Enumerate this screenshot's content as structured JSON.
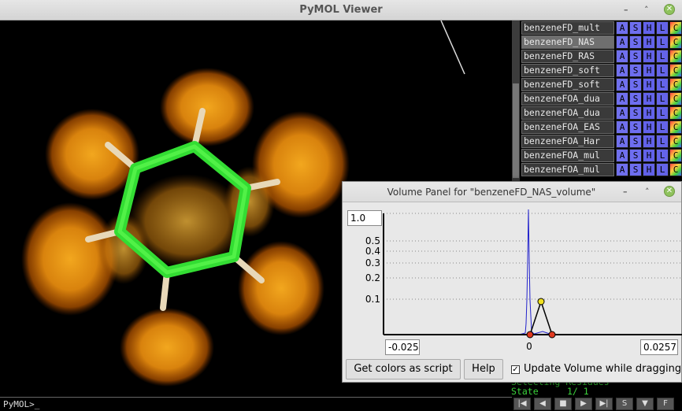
{
  "window": {
    "title": "PyMOL Viewer",
    "minimize": "–",
    "maximize": "˄",
    "close": "✕"
  },
  "command_line": {
    "prompt": "PyMOL>_"
  },
  "objects": [
    {
      "name": "benzeneFD_mult",
      "selected": false
    },
    {
      "name": "benzeneFD_NAS",
      "selected": true
    },
    {
      "name": "benzeneFD_RAS",
      "selected": false
    },
    {
      "name": "benzeneFD_soft",
      "selected": false
    },
    {
      "name": "benzeneFD_soft",
      "selected": false
    },
    {
      "name": "benzeneFOA_dua",
      "selected": false
    },
    {
      "name": "benzeneFOA_dua",
      "selected": false
    },
    {
      "name": "benzeneFOA_EAS",
      "selected": false
    },
    {
      "name": "benzeneFOA_Har",
      "selected": false
    },
    {
      "name": "benzeneFOA_mul",
      "selected": false
    },
    {
      "name": "benzeneFOA_mul",
      "selected": false
    }
  ],
  "object_buttons": {
    "a": "A",
    "s": "S",
    "h": "H",
    "l": "L",
    "c": "C"
  },
  "status": {
    "line1": "Selecting Residues",
    "state_label": "State",
    "state_value": "1/   1"
  },
  "movie_controls": [
    "|◀",
    "◀",
    "■",
    "▶",
    "▶|",
    "S",
    "▼",
    "F"
  ],
  "volume_panel": {
    "title": "Volume Panel for \"benzeneFD_NAS_volume\"",
    "top_value": "1.0",
    "y_ticks": [
      "0.5",
      "0.4",
      "0.3",
      "0.2",
      "0.1"
    ],
    "x_min": "-0.025",
    "x_zero": "0",
    "x_max": "0.0257",
    "get_colors_button": "Get colors as script",
    "help_button": "Help",
    "update_checkbox_label": "Update Volume while dragging",
    "update_checked": true,
    "check_mark": "✓"
  }
}
